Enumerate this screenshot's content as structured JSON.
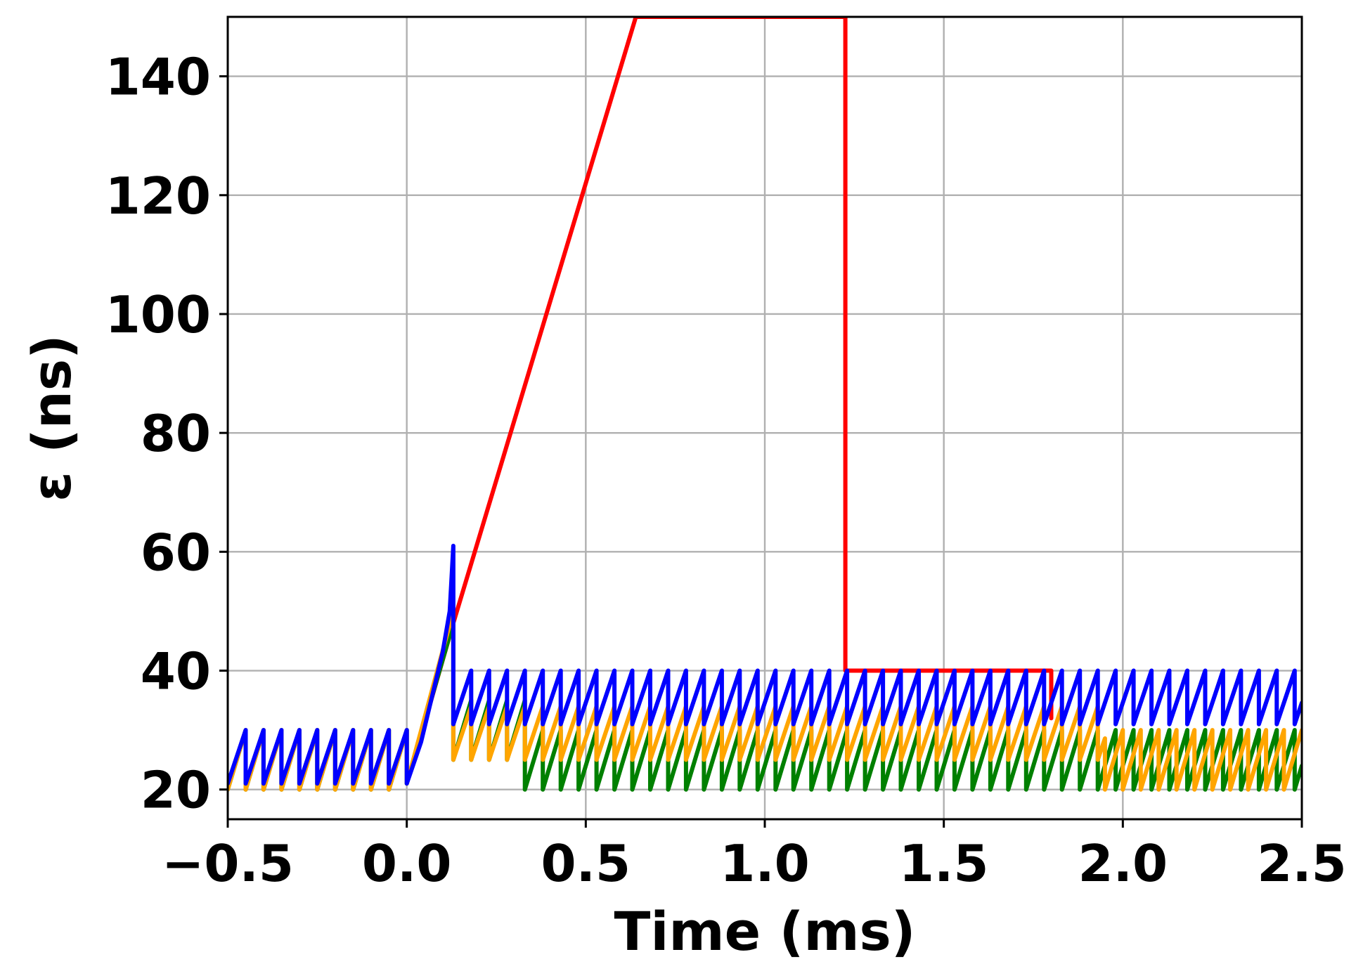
{
  "chart_data": {
    "type": "line",
    "title": "",
    "xlabel": "Time (ms)",
    "ylabel": "ε (ns)",
    "xlim": [
      -0.5,
      2.5
    ],
    "ylim": [
      15,
      150
    ],
    "xticks": [
      -0.5,
      0.0,
      0.5,
      1.0,
      1.5,
      2.0,
      2.5
    ],
    "xtick_labels": [
      "−0.5",
      "0.0",
      "0.5",
      "1.0",
      "1.5",
      "2.0",
      "2.5"
    ],
    "yticks": [
      20,
      40,
      60,
      80,
      100,
      120,
      140
    ],
    "ytick_labels": [
      "20",
      "40",
      "60",
      "80",
      "100",
      "120",
      "140"
    ],
    "grid": true,
    "legend": "none",
    "series": [
      {
        "color": "#ff0000",
        "x": [
          0.03,
          0.13,
          0.64,
          1.225,
          1.225,
          1.228,
          1.228,
          1.8,
          1.8,
          1.8
        ],
        "y": [
          27,
          48,
          150,
          150,
          40,
          40,
          40,
          40,
          40,
          32
        ]
      },
      {
        "color": "#008000",
        "segments": [
          {
            "x_start": -0.5,
            "x_end": 0.0,
            "period": 0.05,
            "low": 20,
            "high": 30
          },
          {
            "x_start": 0.13,
            "x_end": 0.33,
            "period": 0.05,
            "low": 25,
            "high": 35
          },
          {
            "x_start": 0.33,
            "x_end": 2.5,
            "period": 0.05,
            "low": 20,
            "high": 30
          }
        ],
        "ramp": {
          "x": [
            0.0,
            0.13
          ],
          "y": [
            21,
            48
          ]
        }
      },
      {
        "color": "#ffa500",
        "segments": [
          {
            "x_start": -0.5,
            "x_end": 0.0,
            "period": 0.05,
            "low": 20,
            "high": 30
          },
          {
            "x_start": 0.13,
            "x_end": 1.95,
            "period": 0.05,
            "low": 25,
            "high": 34
          },
          {
            "x_start": 1.95,
            "x_end": 2.5,
            "period": 0.05,
            "low": 20,
            "high": 30
          }
        ],
        "ramp": {
          "x": [
            0.0,
            0.13
          ],
          "y": [
            21,
            50
          ]
        }
      },
      {
        "color": "#0000ff",
        "segments": [
          {
            "x_start": -0.5,
            "x_end": 0.0,
            "period": 0.05,
            "low": 21,
            "high": 30
          },
          {
            "x_start": 0.13,
            "x_end": 2.5,
            "period": 0.05,
            "low": 31,
            "high": 40
          }
        ],
        "ramp": {
          "x": [
            0.0,
            0.04,
            0.1,
            0.12,
            0.13,
            0.13,
            0.13
          ],
          "y": [
            21,
            28,
            43,
            50,
            61,
            50,
            31
          ]
        }
      }
    ]
  }
}
